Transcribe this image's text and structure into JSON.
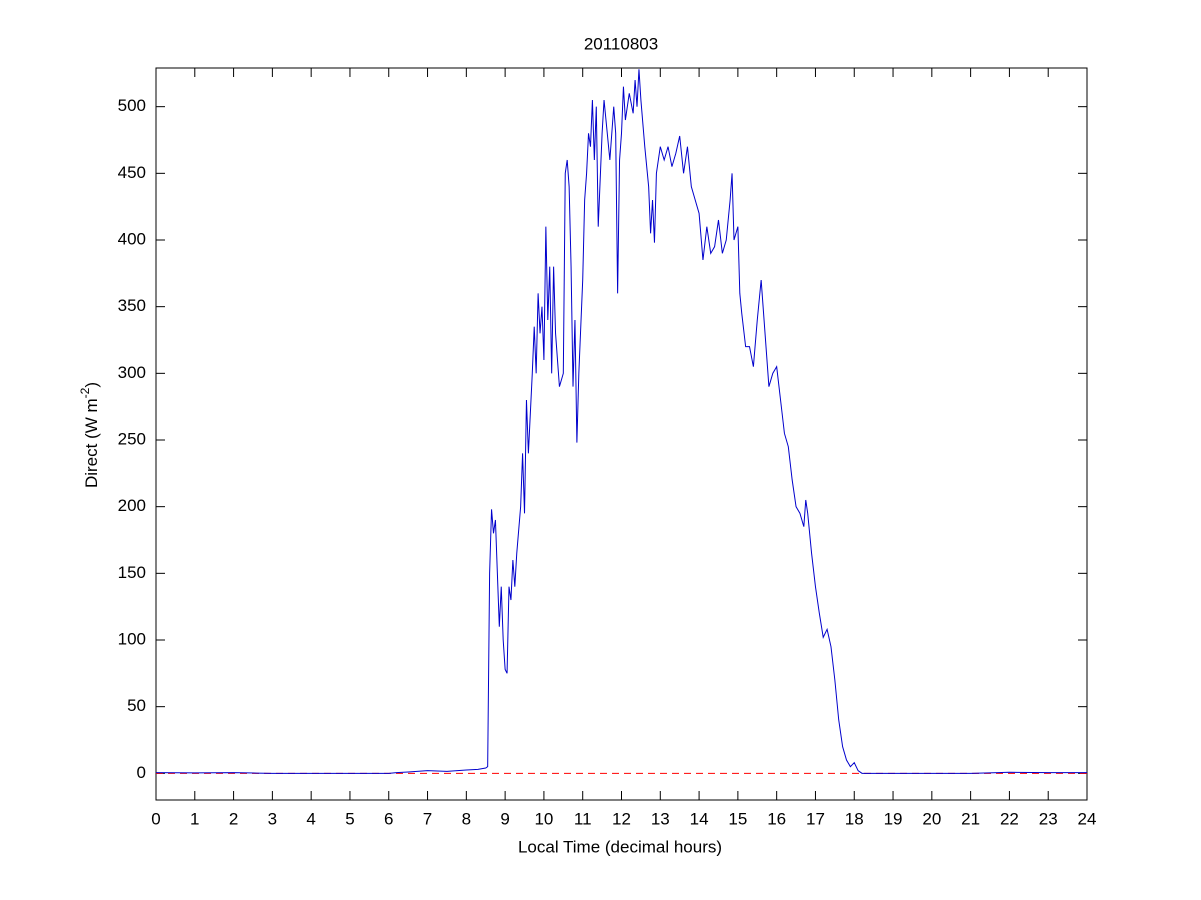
{
  "chart_data": {
    "type": "line",
    "title": "20110803",
    "xlabel": "Local Time (decimal hours)",
    "ylabel": {
      "text": "Direct (W m",
      "superscript": "-2",
      "suffix": ")"
    },
    "xlim": [
      0,
      24
    ],
    "ylim": [
      -20,
      529
    ],
    "xticks": [
      0,
      1,
      2,
      3,
      4,
      5,
      6,
      7,
      8,
      9,
      10,
      11,
      12,
      13,
      14,
      15,
      16,
      17,
      18,
      19,
      20,
      21,
      22,
      23,
      24
    ],
    "yticks": [
      0,
      50,
      100,
      150,
      200,
      250,
      300,
      350,
      400,
      450,
      500
    ],
    "grid": false,
    "reference_line": {
      "value": 0,
      "color": "#ff0000",
      "style": "dashed"
    },
    "series": [
      {
        "color": "#0000cc",
        "x": [
          0,
          1,
          2,
          2.6,
          3,
          4,
          5,
          6,
          6.2,
          6.5,
          7,
          7.5,
          8,
          8.3,
          8.5,
          8.55,
          8.6,
          8.65,
          8.7,
          8.75,
          8.8,
          8.85,
          8.9,
          8.95,
          9,
          9.05,
          9.1,
          9.15,
          9.2,
          9.25,
          9.3,
          9.4,
          9.45,
          9.5,
          9.55,
          9.6,
          9.65,
          9.7,
          9.75,
          9.8,
          9.85,
          9.9,
          9.95,
          10,
          10.05,
          10.1,
          10.15,
          10.2,
          10.25,
          10.3,
          10.4,
          10.5,
          10.55,
          10.6,
          10.65,
          10.7,
          10.75,
          10.8,
          10.85,
          10.9,
          11,
          11.05,
          11.1,
          11.15,
          11.2,
          11.25,
          11.3,
          11.35,
          11.4,
          11.5,
          11.55,
          11.6,
          11.7,
          11.8,
          11.85,
          11.9,
          11.95,
          12,
          12.05,
          12.1,
          12.2,
          12.3,
          12.35,
          12.4,
          12.45,
          12.5,
          12.6,
          12.7,
          12.75,
          12.8,
          12.85,
          12.9,
          13,
          13.1,
          13.2,
          13.3,
          13.4,
          13.5,
          13.6,
          13.7,
          13.8,
          13.9,
          14,
          14.1,
          14.2,
          14.3,
          14.4,
          14.5,
          14.6,
          14.7,
          14.8,
          14.85,
          14.9,
          15,
          15.05,
          15.1,
          15.2,
          15.3,
          15.4,
          15.5,
          15.6,
          15.7,
          15.8,
          15.9,
          16,
          16.1,
          16.2,
          16.3,
          16.4,
          16.5,
          16.6,
          16.7,
          16.75,
          16.8,
          16.9,
          17,
          17.1,
          17.2,
          17.3,
          17.4,
          17.5,
          17.6,
          17.7,
          17.8,
          17.9,
          18,
          18.1,
          18.2,
          19,
          21,
          21.7,
          22,
          23,
          24
        ],
        "values": [
          0.5,
          0.3,
          0.5,
          0.2,
          0,
          0,
          0,
          0,
          0.5,
          1,
          2,
          1.5,
          2.5,
          3,
          4,
          5,
          150,
          198,
          180,
          190,
          150,
          110,
          140,
          100,
          78,
          75,
          140,
          130,
          160,
          140,
          165,
          200,
          240,
          195,
          280,
          240,
          270,
          300,
          335,
          300,
          360,
          330,
          350,
          310,
          410,
          340,
          380,
          300,
          380,
          330,
          290,
          300,
          450,
          460,
          440,
          380,
          290,
          340,
          248,
          300,
          370,
          430,
          450,
          480,
          470,
          505,
          460,
          500,
          410,
          480,
          505,
          490,
          460,
          500,
          480,
          360,
          460,
          480,
          515,
          490,
          510,
          495,
          520,
          500,
          528,
          505,
          470,
          440,
          405,
          430,
          398,
          450,
          470,
          460,
          470,
          455,
          465,
          478,
          450,
          470,
          440,
          430,
          420,
          385,
          410,
          390,
          395,
          415,
          390,
          400,
          430,
          450,
          400,
          410,
          360,
          345,
          320,
          320,
          305,
          340,
          370,
          330,
          290,
          300,
          305,
          280,
          255,
          245,
          220,
          200,
          195,
          185,
          205,
          195,
          165,
          140,
          120,
          102,
          108,
          95,
          70,
          40,
          20,
          10,
          5,
          8,
          2,
          0,
          0,
          0,
          0.5,
          0.8,
          0.5,
          0.5
        ]
      }
    ]
  }
}
